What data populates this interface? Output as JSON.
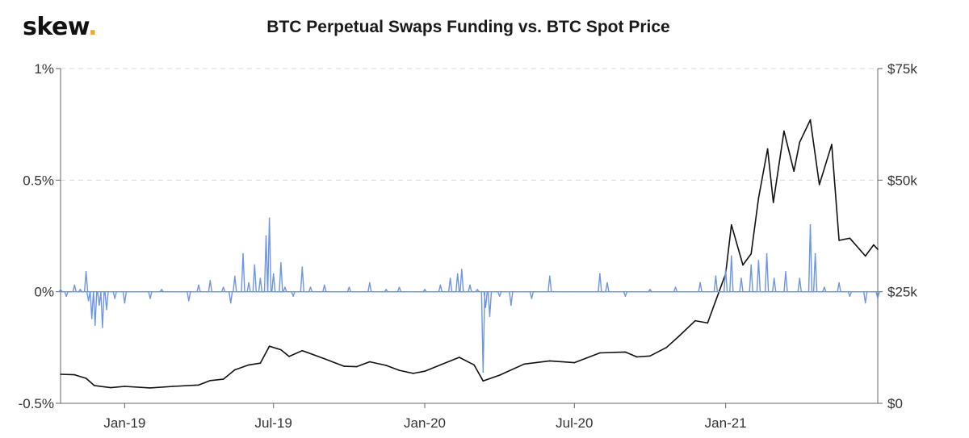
{
  "brand": {
    "name": "skew",
    "dot": "."
  },
  "chart_data": {
    "type": "line",
    "title": "BTC Perpetual Swaps Funding vs. BTC Spot Price",
    "grid": "horizontal dashed",
    "x_ticks": [
      "Jan-19",
      "Jul-19",
      "Jan-20",
      "Jul-20",
      "Jan-21"
    ],
    "y_left": {
      "ticks": [
        "-0.5%",
        "0%",
        "0.5%",
        "1%"
      ],
      "range": [
        -0.5,
        1.0
      ],
      "unit": "%"
    },
    "y_right": {
      "ticks": [
        "$0",
        "$25k",
        "$50k",
        "$75k"
      ],
      "range": [
        0,
        75000
      ],
      "unit": "USD"
    },
    "series": [
      {
        "name": "BTC Spot Price",
        "axis": "right",
        "color": "#111111",
        "points": [
          [
            "2018-10-15",
            6500
          ],
          [
            "2018-11-01",
            6400
          ],
          [
            "2018-11-15",
            5600
          ],
          [
            "2018-11-25",
            4000
          ],
          [
            "2018-12-15",
            3500
          ],
          [
            "2019-01-01",
            3800
          ],
          [
            "2019-02-01",
            3450
          ],
          [
            "2019-03-01",
            3800
          ],
          [
            "2019-04-01",
            4100
          ],
          [
            "2019-04-15",
            5100
          ],
          [
            "2019-05-01",
            5400
          ],
          [
            "2019-05-15",
            7500
          ],
          [
            "2019-06-01",
            8600
          ],
          [
            "2019-06-15",
            9000
          ],
          [
            "2019-06-26",
            12800
          ],
          [
            "2019-07-10",
            12000
          ],
          [
            "2019-07-20",
            10500
          ],
          [
            "2019-08-05",
            11800
          ],
          [
            "2019-09-01",
            10000
          ],
          [
            "2019-09-25",
            8300
          ],
          [
            "2019-10-10",
            8200
          ],
          [
            "2019-10-26",
            9300
          ],
          [
            "2019-11-15",
            8500
          ],
          [
            "2019-12-01",
            7400
          ],
          [
            "2019-12-18",
            6700
          ],
          [
            "2020-01-01",
            7200
          ],
          [
            "2020-01-20",
            8600
          ],
          [
            "2020-02-12",
            10300
          ],
          [
            "2020-03-01",
            8600
          ],
          [
            "2020-03-12",
            5000
          ],
          [
            "2020-04-01",
            6300
          ],
          [
            "2020-05-01",
            8800
          ],
          [
            "2020-06-01",
            9500
          ],
          [
            "2020-07-01",
            9100
          ],
          [
            "2020-08-01",
            11300
          ],
          [
            "2020-09-01",
            11500
          ],
          [
            "2020-09-15",
            10400
          ],
          [
            "2020-10-01",
            10600
          ],
          [
            "2020-10-21",
            12500
          ],
          [
            "2020-11-05",
            15000
          ],
          [
            "2020-11-25",
            18500
          ],
          [
            "2020-12-10",
            18000
          ],
          [
            "2020-12-20",
            23000
          ],
          [
            "2021-01-01",
            29000
          ],
          [
            "2021-01-08",
            40000
          ],
          [
            "2021-01-22",
            31000
          ],
          [
            "2021-02-01",
            33500
          ],
          [
            "2021-02-10",
            46000
          ],
          [
            "2021-02-21",
            57000
          ],
          [
            "2021-02-28",
            45000
          ],
          [
            "2021-03-13",
            61000
          ],
          [
            "2021-03-25",
            52000
          ],
          [
            "2021-04-01",
            58500
          ],
          [
            "2021-04-14",
            63500
          ],
          [
            "2021-04-25",
            49000
          ],
          [
            "2021-05-10",
            58000
          ],
          [
            "2021-05-19",
            36500
          ],
          [
            "2021-06-01",
            37000
          ],
          [
            "2021-06-20",
            33000
          ],
          [
            "2021-06-30",
            35500
          ],
          [
            "2021-07-05",
            34500
          ]
        ]
      },
      {
        "name": "BTC Perpetual Swaps Funding",
        "axis": "left",
        "color": "#6c96e3",
        "points": [
          [
            "2018-10-15",
            0.01
          ],
          [
            "2018-10-22",
            -0.02
          ],
          [
            "2018-11-01",
            0.03
          ],
          [
            "2018-11-08",
            0.01
          ],
          [
            "2018-11-15",
            0.09
          ],
          [
            "2018-11-18",
            -0.04
          ],
          [
            "2018-11-22",
            -0.12
          ],
          [
            "2018-11-26",
            -0.15
          ],
          [
            "2018-12-01",
            -0.06
          ],
          [
            "2018-12-05",
            -0.16
          ],
          [
            "2018-12-10",
            -0.08
          ],
          [
            "2018-12-20",
            -0.03
          ],
          [
            "2019-01-01",
            -0.05
          ],
          [
            "2019-01-15",
            0.0
          ],
          [
            "2019-02-01",
            -0.03
          ],
          [
            "2019-02-15",
            0.01
          ],
          [
            "2019-03-01",
            0.0
          ],
          [
            "2019-03-20",
            -0.04
          ],
          [
            "2019-04-01",
            0.03
          ],
          [
            "2019-04-15",
            0.05
          ],
          [
            "2019-05-01",
            0.02
          ],
          [
            "2019-05-10",
            -0.05
          ],
          [
            "2019-05-15",
            0.07
          ],
          [
            "2019-05-25",
            0.17
          ],
          [
            "2019-06-01",
            0.04
          ],
          [
            "2019-06-08",
            0.12
          ],
          [
            "2019-06-15",
            0.06
          ],
          [
            "2019-06-22",
            0.25
          ],
          [
            "2019-06-26",
            0.33
          ],
          [
            "2019-07-01",
            0.08
          ],
          [
            "2019-07-10",
            0.13
          ],
          [
            "2019-07-15",
            0.02
          ],
          [
            "2019-07-25",
            -0.02
          ],
          [
            "2019-08-05",
            0.11
          ],
          [
            "2019-08-15",
            0.02
          ],
          [
            "2019-09-01",
            0.03
          ],
          [
            "2019-09-15",
            0.0
          ],
          [
            "2019-10-01",
            0.02
          ],
          [
            "2019-10-26",
            0.04
          ],
          [
            "2019-11-15",
            0.01
          ],
          [
            "2019-12-01",
            0.02
          ],
          [
            "2019-12-15",
            0.0
          ],
          [
            "2020-01-01",
            0.01
          ],
          [
            "2020-01-20",
            0.03
          ],
          [
            "2020-02-01",
            0.06
          ],
          [
            "2020-02-10",
            0.08
          ],
          [
            "2020-02-15",
            0.1
          ],
          [
            "2020-02-25",
            0.03
          ],
          [
            "2020-03-05",
            0.01
          ],
          [
            "2020-03-12",
            -0.36
          ],
          [
            "2020-03-15",
            -0.07
          ],
          [
            "2020-03-20",
            -0.11
          ],
          [
            "2020-04-01",
            -0.02
          ],
          [
            "2020-04-15",
            -0.06
          ],
          [
            "2020-05-01",
            0.0
          ],
          [
            "2020-05-10",
            -0.03
          ],
          [
            "2020-06-01",
            0.07
          ],
          [
            "2020-06-15",
            0.0
          ],
          [
            "2020-07-01",
            0.0
          ],
          [
            "2020-08-01",
            0.08
          ],
          [
            "2020-08-10",
            0.04
          ],
          [
            "2020-09-01",
            -0.02
          ],
          [
            "2020-10-01",
            0.01
          ],
          [
            "2020-11-01",
            0.02
          ],
          [
            "2020-12-01",
            0.04
          ],
          [
            "2020-12-20",
            0.07
          ],
          [
            "2021-01-01",
            0.1
          ],
          [
            "2021-01-08",
            0.16
          ],
          [
            "2021-01-20",
            0.06
          ],
          [
            "2021-02-01",
            0.12
          ],
          [
            "2021-02-10",
            0.14
          ],
          [
            "2021-02-20",
            0.17
          ],
          [
            "2021-03-01",
            0.06
          ],
          [
            "2021-03-15",
            0.09
          ],
          [
            "2021-04-01",
            0.06
          ],
          [
            "2021-04-14",
            0.3
          ],
          [
            "2021-04-20",
            0.17
          ],
          [
            "2021-05-01",
            0.02
          ],
          [
            "2021-05-19",
            0.04
          ],
          [
            "2021-06-01",
            -0.02
          ],
          [
            "2021-06-20",
            -0.05
          ],
          [
            "2021-07-05",
            -0.03
          ]
        ]
      }
    ]
  }
}
